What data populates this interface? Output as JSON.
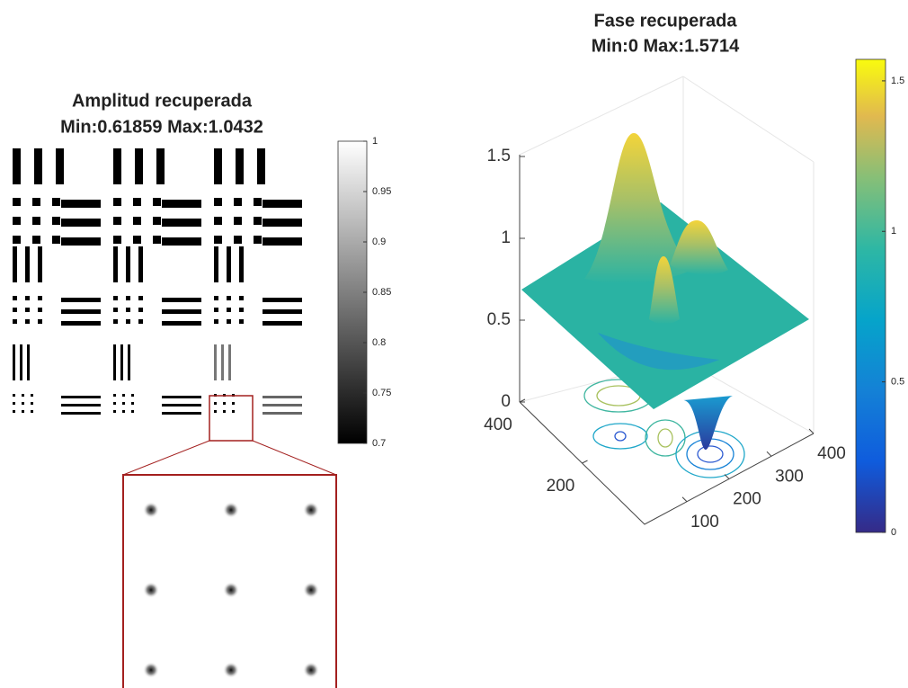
{
  "chart_data": [
    {
      "type": "image",
      "title": "Amplitud recuperada",
      "subtitle": "Min:0.61859 Max:1.0432",
      "colormap": "gray",
      "clim": [
        0.7,
        1
      ],
      "cticks": [
        0.7,
        0.75,
        0.8,
        0.85,
        0.9,
        0.95,
        1
      ]
    },
    {
      "type": "surface",
      "title": "Fase recuperada",
      "subtitle": "Min:0 Max:1.5714",
      "colormap": "parula",
      "clim": [
        0,
        1.5714
      ],
      "cticks": [
        0,
        0.5,
        1,
        1.5
      ],
      "zlim": [
        0,
        1.5714
      ],
      "zticks": [
        0,
        0.5,
        1,
        1.5
      ],
      "xlim": [
        0,
        400
      ],
      "xticks": [
        100,
        200,
        300,
        400
      ],
      "ylim": [
        0,
        400
      ],
      "yticks": [
        200,
        400
      ]
    }
  ]
}
